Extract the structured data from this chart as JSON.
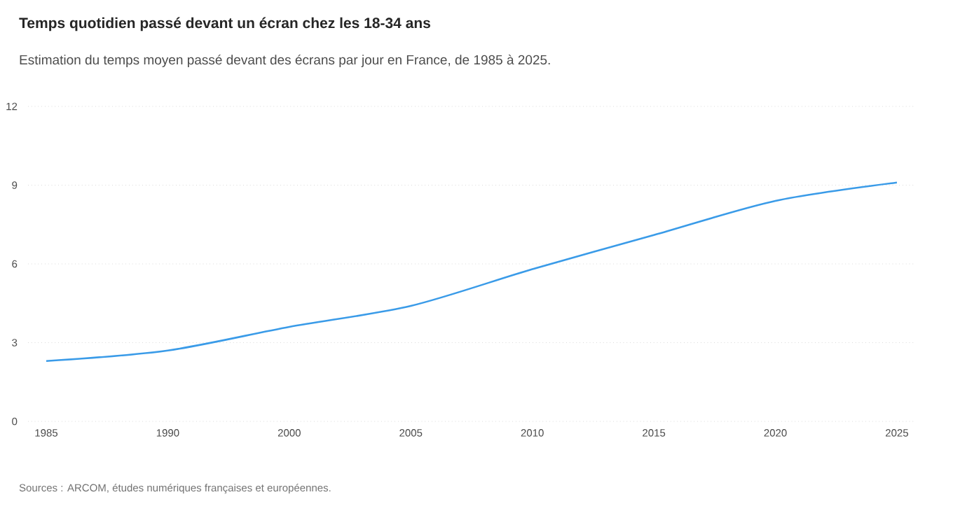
{
  "chart_data": {
    "type": "line",
    "title": "Temps quotidien passé devant un écran chez les 18-34 ans",
    "subtitle": "Estimation du temps moyen passé devant des écrans par jour en France, de 1985 à 2025.",
    "annotations": [
      "Sources : ARCOM, études numériques françaises et européennes."
    ],
    "categories": [
      "1985",
      "1990",
      "2000",
      "2005",
      "2010",
      "2015",
      "2020",
      "2025"
    ],
    "values": [
      2.3,
      2.7,
      3.6,
      4.4,
      5.8,
      7.1,
      8.4,
      9.1
    ],
    "color": "#3a9be8",
    "ylim": [
      0,
      12
    ],
    "yticks": [
      0,
      3,
      6,
      9,
      12
    ],
    "grid": "y",
    "marker": "none",
    "line_style": "solid"
  }
}
